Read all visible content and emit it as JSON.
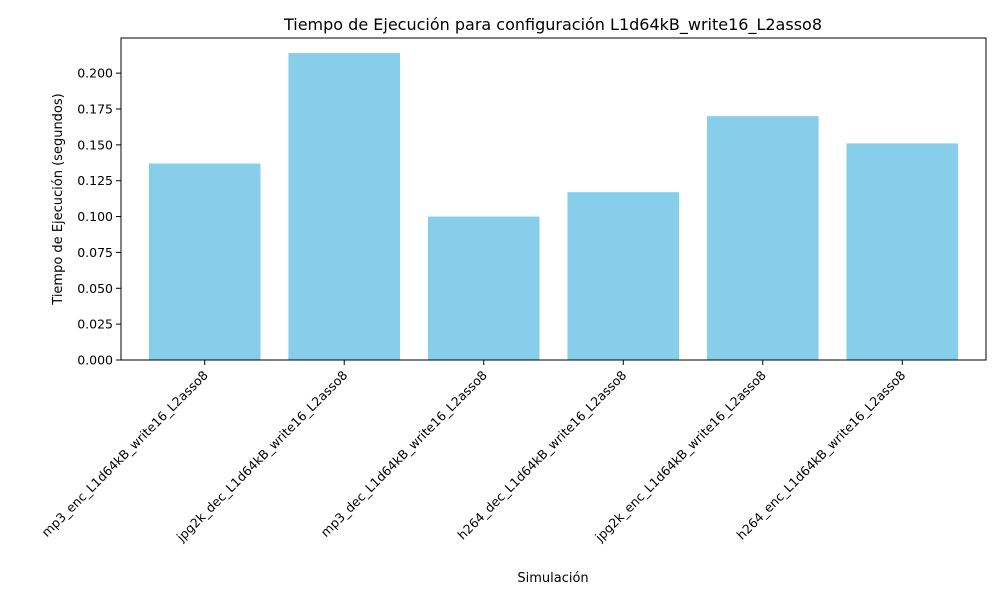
{
  "chart_data": {
    "type": "bar",
    "title": "Tiempo de Ejecución para configuración L1d64kB_write16_L2asso8",
    "xlabel": "Simulación",
    "ylabel": "Tiempo de Ejecución (segundos)",
    "categories": [
      "mp3_enc_L1d64kB_write16_L2asso8",
      "jpg2k_dec_L1d64kB_write16_L2asso8",
      "mp3_dec_L1d64kB_write16_L2asso8",
      "h264_dec_L1d64kB_write16_L2asso8",
      "jpg2k_enc_L1d64kB_write16_L2asso8",
      "h264_enc_L1d64kB_write16_L2asso8"
    ],
    "values": [
      0.137,
      0.214,
      0.1,
      0.117,
      0.17,
      0.151
    ],
    "ylim": [
      0,
      0.2245
    ],
    "yticks": [
      "0.000",
      "0.025",
      "0.050",
      "0.075",
      "0.100",
      "0.125",
      "0.150",
      "0.175",
      "0.200"
    ],
    "bar_color": "#87ceeb",
    "grid": false,
    "legend": "none"
  }
}
